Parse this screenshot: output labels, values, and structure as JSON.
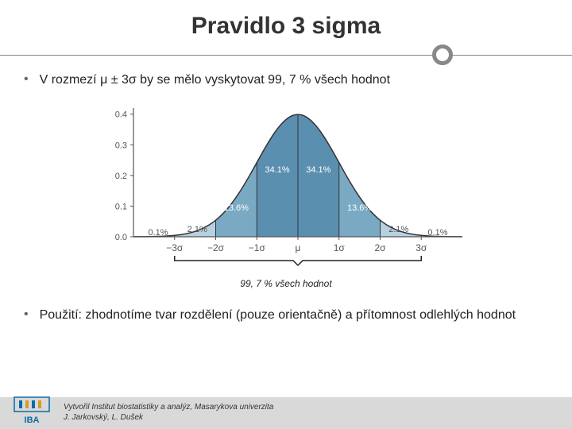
{
  "title": "Pravidlo 3 sigma",
  "bullet1": "V rozmezí μ ± 3σ by se mělo vyskytovat 99, 7 % všech hodnot",
  "bullet2": "Použití: zhodnotíme tvar rozdělení (pouze orientačně) a přítomnost odlehlých hodnot",
  "bracketCaption": "99, 7 %  všech hodnot",
  "footer1": "Vytvořil Institut biostatistiky a analýz, Masarykova univerzita",
  "footer2": "J. Jarkovský, L. Dušek",
  "chart": {
    "type": "normal-distribution",
    "y_ticks": [
      "0.0",
      "0.1",
      "0.2",
      "0.3",
      "0.4"
    ],
    "x_ticks": [
      "−3σ",
      "−2σ",
      "−1σ",
      "μ",
      "1σ",
      "2σ",
      "3σ"
    ],
    "segments": [
      {
        "label": "0.1%",
        "color": "#cfe0ea",
        "text_color": "#555"
      },
      {
        "label": "2.1%",
        "color": "#b7d1e1",
        "text_color": "#555"
      },
      {
        "label": "13.6%",
        "color": "#7aa9c4",
        "text_color": "#fff"
      },
      {
        "label": "34.1%",
        "color": "#5b8fb0",
        "text_color": "#fff"
      },
      {
        "label": "34.1%",
        "color": "#5b8fb0",
        "text_color": "#fff"
      },
      {
        "label": "13.6%",
        "color": "#7aa9c4",
        "text_color": "#fff"
      },
      {
        "label": "2.1%",
        "color": "#b7d1e1",
        "text_color": "#555"
      },
      {
        "label": "0.1%",
        "color": "#cfe0ea",
        "text_color": "#555"
      }
    ],
    "axis_color": "#555",
    "curve_color": "#333",
    "background": "#ffffff"
  },
  "logo_text": "IBA"
}
